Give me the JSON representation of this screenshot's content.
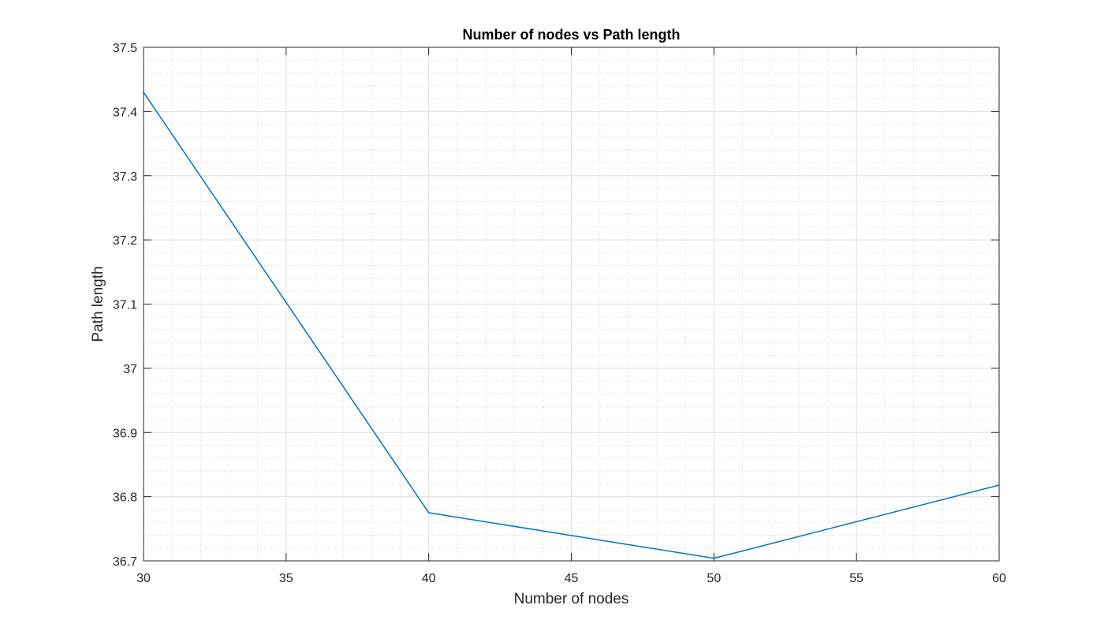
{
  "chart_data": {
    "type": "line",
    "title": "Number of nodes vs Path length",
    "xlabel": "Number of nodes",
    "ylabel": "Path length",
    "xlim": [
      30,
      60
    ],
    "ylim": [
      36.7,
      37.5
    ],
    "xticks": [
      "30",
      "35",
      "40",
      "45",
      "50",
      "55",
      "60"
    ],
    "yticks": [
      "36.7",
      "36.8",
      "36.9",
      "37",
      "37.1",
      "37.2",
      "37.3",
      "37.4",
      "37.5"
    ],
    "grid": true,
    "minor_grid": true,
    "series": [
      {
        "color": "#0072BD",
        "x": [
          30,
          40,
          50,
          60
        ],
        "y": [
          37.43,
          36.775,
          36.704,
          36.818
        ]
      }
    ]
  }
}
